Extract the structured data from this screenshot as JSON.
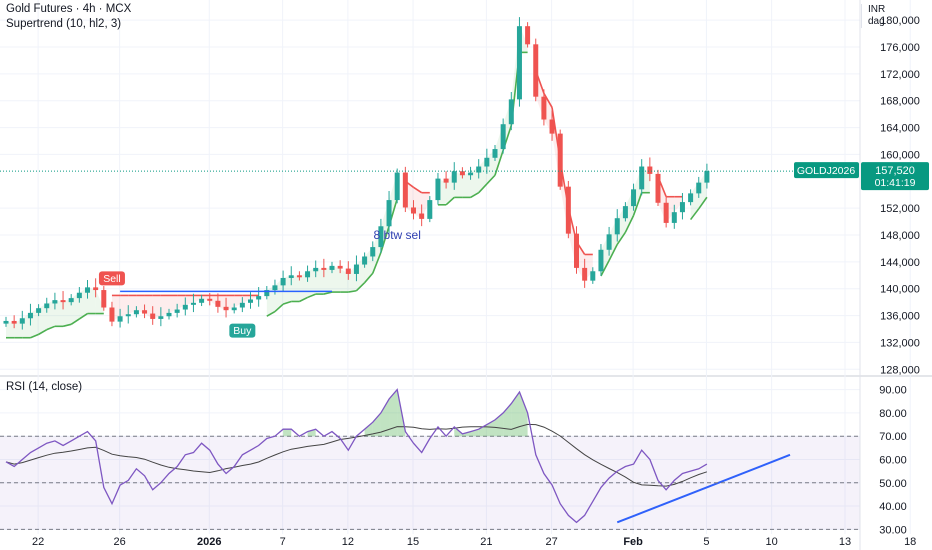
{
  "header": {
    "symbol_line": "Gold Futures · 4h · MCX",
    "indicator_line": "Supertrend (10, hl2, 3)",
    "currency": "INR",
    "period": "dag"
  },
  "rsi_legend": "RSI (14, close)",
  "colors": {
    "up": "#26a69a",
    "down": "#ef5350",
    "supertrend_up": "#4caf50",
    "supertrend_down": "#ef5350",
    "trendline": "#2962ff",
    "rsi_line": "#7e57c2",
    "rsi_ma": "#444444",
    "badge": "#089981"
  },
  "chart_data": [
    {
      "type": "candlestick",
      "title": "Gold Futures · 4h · MCX",
      "indicator": "Supertrend (10, hl2, 3)",
      "ylim": [
        127000,
        183000
      ],
      "yticks": [
        "180,000",
        "176,000",
        "172,000",
        "168,000",
        "164,000",
        "160,000",
        "152,000",
        "148,000",
        "144,000",
        "140,000",
        "136,000",
        "132,000",
        "128,000"
      ],
      "x_date_labels": [
        "22",
        "26",
        "2026",
        "7",
        "12",
        "15",
        "21",
        "27",
        "Feb",
        "5",
        "10",
        "13",
        "18"
      ],
      "last_price": "157,520",
      "countdown": "01:41:19",
      "ticker_badge": "GOLDJ2026",
      "signals": [
        {
          "label": "Sell",
          "price": 140800
        },
        {
          "label": "Buy",
          "price": 135400
        },
        {
          "label": "Sell",
          "price": 183300
        }
      ],
      "annotation": "8 btw sel",
      "closes": [
        135200,
        134800,
        135600,
        136400,
        137100,
        137800,
        138300,
        138000,
        138600,
        139400,
        140200,
        139800,
        137200,
        135100,
        135900,
        136200,
        136800,
        136300,
        135500,
        135900,
        136400,
        136900,
        137600,
        137900,
        138500,
        138200,
        137300,
        136800,
        137200,
        137900,
        138400,
        138900,
        139800,
        140500,
        141600,
        142000,
        141700,
        142600,
        143100,
        142800,
        143400,
        143000,
        142200,
        143600,
        144800,
        146200,
        149300,
        153200,
        157300,
        152100,
        151200,
        150400,
        153200,
        156400,
        155800,
        157500,
        156900,
        157300,
        158200,
        159500,
        160800,
        164500,
        168200,
        179100,
        176400,
        168600,
        165200,
        163100,
        155200,
        148200,
        143100,
        141200,
        142600,
        145800,
        148100,
        150500,
        152300,
        154800,
        158200,
        157100,
        152800,
        149800,
        151400,
        152900,
        154200,
        155800,
        157520
      ]
    },
    {
      "type": "line",
      "title": "RSI (14, close)",
      "ylim": [
        28,
        95
      ],
      "yticks": [
        "90.00",
        "80.00",
        "70.00",
        "60.00",
        "50.00",
        "40.00",
        "30.00"
      ],
      "bands": [
        30,
        50,
        70
      ],
      "values": [
        59,
        57,
        60,
        63,
        65,
        67,
        68,
        66,
        68,
        70,
        72,
        68,
        48,
        41,
        49,
        51,
        56,
        53,
        47,
        50,
        54,
        57,
        62,
        63,
        67,
        64,
        58,
        54,
        57,
        62,
        64,
        66,
        69,
        70,
        73,
        73,
        70,
        72,
        73,
        70,
        72,
        69,
        64,
        70,
        73,
        76,
        80,
        86,
        90,
        72,
        67,
        63,
        69,
        74,
        70,
        74,
        71,
        72,
        73,
        75,
        77,
        80,
        84,
        89,
        80,
        62,
        54,
        49,
        41,
        36,
        33,
        36,
        42,
        48,
        52,
        55,
        57,
        58,
        64,
        60,
        51,
        47,
        51,
        54,
        55,
        56,
        58
      ]
    }
  ]
}
